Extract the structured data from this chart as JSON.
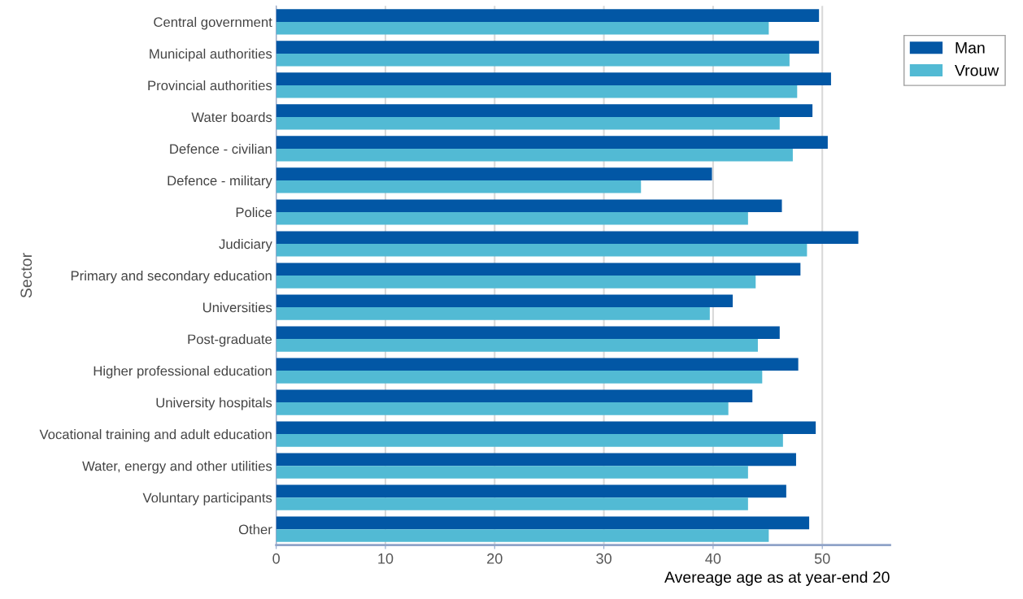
{
  "chart_data": {
    "type": "bar",
    "orientation": "horizontal",
    "xlabel": "Avereage age as at year-end 20",
    "ylabel": "Sector",
    "categories": [
      "Central government",
      "Municipal authorities",
      "Provincial authorities",
      "Water boards",
      "Defence - civilian",
      "Defence - military",
      "Police",
      "Judiciary",
      "Primary and secondary education",
      "Universities",
      "Post-graduate",
      "Higher professional education",
      "University hospitals",
      "Vocational training and adult education",
      "Water, energy and other utilities",
      "Voluntary participants",
      "Other"
    ],
    "series": [
      {
        "name": "Man",
        "color": "#0257a5",
        "values": [
          49.7,
          49.7,
          50.8,
          49.1,
          50.5,
          39.9,
          46.3,
          53.3,
          48.0,
          41.8,
          46.1,
          47.8,
          43.6,
          49.4,
          47.6,
          46.7,
          48.8
        ]
      },
      {
        "name": "Vrouw",
        "color": "#52bad4",
        "values": [
          45.1,
          47.0,
          47.7,
          46.1,
          47.3,
          33.4,
          43.2,
          48.6,
          43.9,
          39.7,
          44.1,
          44.5,
          41.4,
          46.4,
          43.2,
          43.2,
          45.1
        ]
      }
    ],
    "xlim": [
      0,
      56.2
    ],
    "xticks": [
      0,
      10,
      20,
      30,
      40,
      50
    ],
    "grid": "x",
    "legend": "top right"
  }
}
